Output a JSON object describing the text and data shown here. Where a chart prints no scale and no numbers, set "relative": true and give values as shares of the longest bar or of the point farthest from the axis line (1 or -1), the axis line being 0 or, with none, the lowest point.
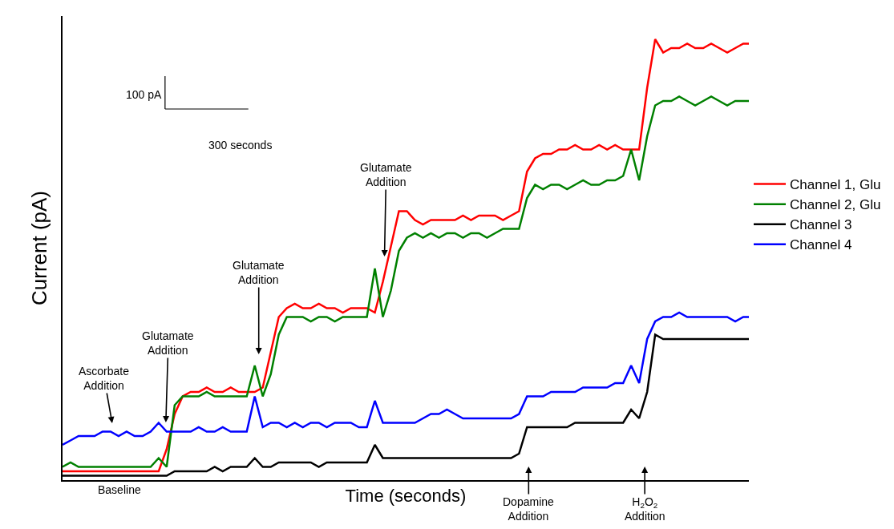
{
  "chart_data": {
    "type": "line",
    "relative": true,
    "xlabel": "Time (seconds)",
    "ylabel": "Current (pA)",
    "categories": [
      null,
      null,
      null,
      null,
      null,
      null,
      null,
      null,
      null,
      null,
      null,
      null,
      null,
      null,
      null,
      null,
      null,
      null,
      null,
      null,
      null,
      null,
      null,
      null,
      null,
      null,
      null,
      null,
      null,
      null,
      null,
      null,
      null,
      null,
      null,
      null,
      null,
      null,
      null,
      null,
      null,
      null,
      null,
      null,
      null,
      null,
      null,
      null,
      null,
      null,
      null,
      null,
      null,
      null,
      null,
      null,
      null,
      null,
      null,
      null,
      null,
      null,
      null,
      null,
      null,
      null,
      null,
      null,
      null,
      null,
      null,
      null,
      null,
      null,
      null,
      null,
      null,
      null,
      null,
      null,
      null,
      null,
      null,
      null,
      null,
      null,
      null
    ],
    "series": [
      {
        "name": "Channel 1, Glu",
        "color": "#ff0000",
        "values": [
          0.02,
          0.02,
          0.02,
          0.02,
          0.02,
          0.02,
          0.02,
          0.02,
          0.02,
          0.02,
          0.02,
          0.02,
          0.02,
          0.07,
          0.15,
          0.19,
          0.2,
          0.2,
          0.21,
          0.2,
          0.2,
          0.21,
          0.2,
          0.2,
          0.2,
          0.21,
          0.29,
          0.37,
          0.39,
          0.4,
          0.39,
          0.39,
          0.4,
          0.39,
          0.39,
          0.38,
          0.39,
          0.39,
          0.39,
          0.38,
          0.45,
          0.53,
          0.61,
          0.61,
          0.59,
          0.58,
          0.59,
          0.59,
          0.59,
          0.59,
          0.6,
          0.59,
          0.6,
          0.6,
          0.6,
          0.59,
          0.6,
          0.61,
          0.7,
          0.73,
          0.74,
          0.74,
          0.75,
          0.75,
          0.76,
          0.75,
          0.75,
          0.76,
          0.75,
          0.76,
          0.75,
          0.75,
          0.75,
          0.89,
          1.0,
          0.97,
          0.98,
          0.98,
          0.99,
          0.98,
          0.98,
          0.99,
          0.98,
          0.97,
          0.98,
          0.99,
          0.99
        ]
      },
      {
        "name": "Channel 2, Glu",
        "color": "#008000",
        "values": [
          0.03,
          0.04,
          0.03,
          0.03,
          0.03,
          0.03,
          0.03,
          0.03,
          0.03,
          0.03,
          0.03,
          0.03,
          0.05,
          0.03,
          0.17,
          0.19,
          0.19,
          0.19,
          0.2,
          0.19,
          0.19,
          0.19,
          0.19,
          0.19,
          0.26,
          0.19,
          0.24,
          0.33,
          0.37,
          0.37,
          0.37,
          0.36,
          0.37,
          0.37,
          0.36,
          0.37,
          0.37,
          0.37,
          0.37,
          0.48,
          0.37,
          0.43,
          0.52,
          0.55,
          0.56,
          0.55,
          0.56,
          0.55,
          0.56,
          0.56,
          0.55,
          0.56,
          0.56,
          0.55,
          0.56,
          0.57,
          0.57,
          0.57,
          0.64,
          0.67,
          0.66,
          0.67,
          0.67,
          0.66,
          0.67,
          0.68,
          0.67,
          0.67,
          0.68,
          0.68,
          0.69,
          0.75,
          0.68,
          0.78,
          0.85,
          0.86,
          0.86,
          0.87,
          0.86,
          0.85,
          0.86,
          0.87,
          0.86,
          0.85,
          0.86,
          0.86,
          0.86
        ]
      },
      {
        "name": "Channel 3",
        "color": "#000000",
        "values": [
          0.01,
          0.01,
          0.01,
          0.01,
          0.01,
          0.01,
          0.01,
          0.01,
          0.01,
          0.01,
          0.01,
          0.01,
          0.01,
          0.01,
          0.02,
          0.02,
          0.02,
          0.02,
          0.02,
          0.03,
          0.02,
          0.03,
          0.03,
          0.03,
          0.05,
          0.03,
          0.03,
          0.04,
          0.04,
          0.04,
          0.04,
          0.04,
          0.03,
          0.04,
          0.04,
          0.04,
          0.04,
          0.04,
          0.04,
          0.08,
          0.05,
          0.05,
          0.05,
          0.05,
          0.05,
          0.05,
          0.05,
          0.05,
          0.05,
          0.05,
          0.05,
          0.05,
          0.05,
          0.05,
          0.05,
          0.05,
          0.05,
          0.06,
          0.12,
          0.12,
          0.12,
          0.12,
          0.12,
          0.12,
          0.13,
          0.13,
          0.13,
          0.13,
          0.13,
          0.13,
          0.13,
          0.16,
          0.14,
          0.2,
          0.33,
          0.32,
          0.32,
          0.32,
          0.32,
          0.32,
          0.32,
          0.32,
          0.32,
          0.32,
          0.32,
          0.32,
          0.32
        ]
      },
      {
        "name": "Channel 4",
        "color": "#0000ff",
        "values": [
          0.08,
          0.09,
          0.1,
          0.1,
          0.1,
          0.11,
          0.11,
          0.1,
          0.11,
          0.1,
          0.1,
          0.11,
          0.13,
          0.11,
          0.11,
          0.11,
          0.11,
          0.12,
          0.11,
          0.11,
          0.12,
          0.11,
          0.11,
          0.11,
          0.19,
          0.12,
          0.13,
          0.13,
          0.12,
          0.13,
          0.12,
          0.13,
          0.13,
          0.12,
          0.13,
          0.13,
          0.13,
          0.12,
          0.12,
          0.18,
          0.13,
          0.13,
          0.13,
          0.13,
          0.13,
          0.14,
          0.15,
          0.15,
          0.16,
          0.15,
          0.14,
          0.14,
          0.14,
          0.14,
          0.14,
          0.14,
          0.14,
          0.15,
          0.19,
          0.19,
          0.19,
          0.2,
          0.2,
          0.2,
          0.2,
          0.21,
          0.21,
          0.21,
          0.21,
          0.22,
          0.22,
          0.26,
          0.22,
          0.32,
          0.36,
          0.37,
          0.37,
          0.38,
          0.37,
          0.37,
          0.37,
          0.37,
          0.37,
          0.37,
          0.36,
          0.37,
          0.37
        ]
      }
    ],
    "legend": "right",
    "marker": "none",
    "line_style": "solid",
    "annotations": [
      "Ascorbate\nAddition",
      "Glutamate\nAddition",
      "Glutamate\nAddition",
      "Glutamate\nAddition",
      "Dopamine\nAddition",
      "H$_{2}$O$_{2}$\nAddition",
      "Baseline",
      "100 pA",
      "300 seconds"
    ]
  }
}
